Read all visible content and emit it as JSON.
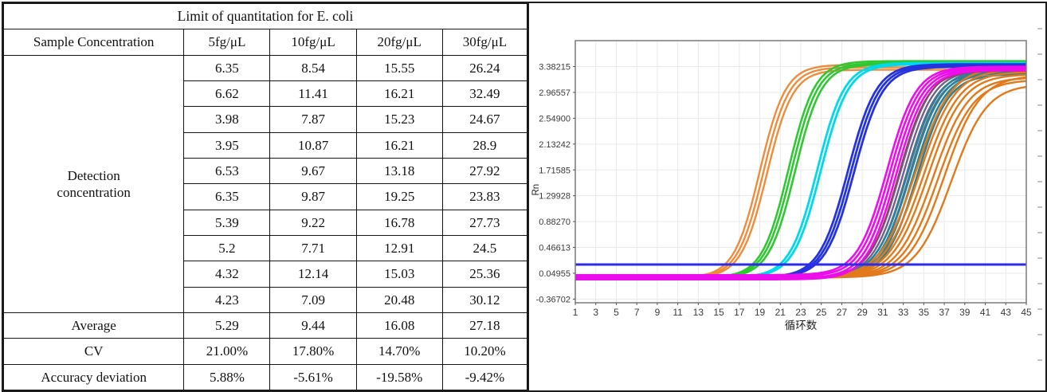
{
  "table": {
    "title": "Limit of quantitation for E. coli",
    "header": [
      "Sample Concentration",
      "5fg/μL",
      "10fg/μL",
      "20fg/μL",
      "30fg/μL"
    ],
    "group_label": [
      "Detection",
      "concentration"
    ],
    "data_rows": [
      [
        "6.35",
        "8.54",
        "15.55",
        "26.24"
      ],
      [
        "6.62",
        "11.41",
        "16.21",
        "32.49"
      ],
      [
        "3.98",
        "7.87",
        "15.23",
        "24.67"
      ],
      [
        "3.95",
        "10.87",
        "16.21",
        "28.9"
      ],
      [
        "6.53",
        "9.67",
        "13.18",
        "27.92"
      ],
      [
        "6.35",
        "9.87",
        "19.25",
        "23.83"
      ],
      [
        "5.39",
        "9.22",
        "16.78",
        "27.73"
      ],
      [
        "5.2",
        "7.71",
        "12.91",
        "24.5"
      ],
      [
        "4.32",
        "12.14",
        "15.03",
        "25.36"
      ],
      [
        "4.23",
        "7.09",
        "20.48",
        "30.12"
      ]
    ],
    "summary_rows": [
      {
        "label": "Average",
        "values": [
          "5.29",
          "9.44",
          "16.08",
          "27.18"
        ]
      },
      {
        "label": "CV",
        "values": [
          "21.00%",
          "17.80%",
          "14.70%",
          "10.20%"
        ]
      },
      {
        "label": "Accuracy deviation",
        "values": [
          "5.88%",
          "-5.61%",
          "-19.58%",
          "-9.42%"
        ]
      }
    ]
  },
  "chart_data": {
    "type": "line",
    "description": "qPCR amplification curves (sigmoid fluorescence vs cycle number) with horizontal threshold line",
    "xlabel": "循环数",
    "ylabel": "Rn",
    "xlim": [
      1,
      45
    ],
    "ylim": [
      -0.426,
      3.8
    ],
    "x_ticks": [
      1,
      3,
      5,
      7,
      9,
      11,
      13,
      15,
      17,
      19,
      21,
      23,
      25,
      27,
      29,
      31,
      33,
      35,
      37,
      39,
      41,
      43,
      45
    ],
    "y_ticks": [
      "3.38215",
      "2.96557",
      "2.54900",
      "2.13242",
      "1.71585",
      "1.29928",
      "0.88270",
      "0.46613",
      "0.04955",
      "-0.36702"
    ],
    "y_tick_values": [
      3.38215,
      2.96557,
      2.549,
      2.13242,
      1.71585,
      1.29928,
      0.8827,
      0.46613,
      0.04955,
      -0.36702
    ],
    "grid": true,
    "plot_border_color": "#7a7a7a",
    "grid_color": "#e9e9e9",
    "threshold": {
      "value": 0.19,
      "color": "#2b2be8",
      "width": 3
    },
    "baseline_default": -0.02,
    "series": [
      {
        "name": "slate-purple-group",
        "color": "#6F6190",
        "width": 2.4,
        "k": 0.68,
        "lines": [
          {
            "m": 32.7,
            "p": 3.36
          },
          {
            "m": 33.0,
            "p": 3.33
          },
          {
            "m": 33.3,
            "p": 3.3
          },
          {
            "m": 33.6,
            "p": 3.28
          }
        ]
      },
      {
        "name": "teal-group",
        "color": "#2E8296",
        "width": 2.6,
        "k": 0.66,
        "lines": [
          {
            "m": 33.4,
            "p": 3.33
          },
          {
            "m": 33.7,
            "p": 3.31
          },
          {
            "m": 34.0,
            "p": 3.29
          },
          {
            "m": 34.35,
            "p": 3.26
          }
        ]
      },
      {
        "name": "orange-late-group",
        "color": "#E2791A",
        "width": 2.4,
        "k": 0.58,
        "lines": [
          {
            "m": 34.2,
            "p": 3.38
          },
          {
            "m": 34.6,
            "p": 3.34
          },
          {
            "m": 35.0,
            "p": 3.3
          },
          {
            "m": 35.4,
            "p": 3.26
          },
          {
            "m": 35.9,
            "p": 3.21
          },
          {
            "m": 36.4,
            "p": 3.17
          },
          {
            "m": 37.0,
            "p": 3.24
          },
          {
            "m": 37.7,
            "p": 3.1
          }
        ]
      },
      {
        "name": "maroon-line",
        "color": "#9A3A55",
        "width": 1.6,
        "k": 0.7,
        "lines": [
          {
            "m": 32.55,
            "p": 3.31
          }
        ]
      },
      {
        "name": "orange-early-group",
        "color": "#EE8C3C",
        "width": 2.4,
        "k": 0.8,
        "lines": [
          {
            "m": 19.0,
            "p": 3.41
          },
          {
            "m": 19.35,
            "p": 3.37
          },
          {
            "m": 19.7,
            "p": 3.33
          }
        ]
      },
      {
        "name": "green-group",
        "color": "#2FC832",
        "width": 2.6,
        "k": 0.78,
        "lines": [
          {
            "m": 21.8,
            "p": 3.47
          },
          {
            "m": 22.1,
            "p": 3.44
          },
          {
            "m": 22.45,
            "p": 3.42
          }
        ]
      },
      {
        "name": "cyan-group",
        "color": "#00D9E9",
        "width": 2.8,
        "k": 0.75,
        "lines": [
          {
            "m": 24.6,
            "p": 3.44
          },
          {
            "m": 24.95,
            "p": 3.42
          }
        ]
      },
      {
        "name": "blue-group",
        "color": "#2433DC",
        "width": 2.8,
        "k": 0.72,
        "lines": [
          {
            "m": 27.6,
            "p": 3.42
          },
          {
            "m": 27.9,
            "p": 3.4
          },
          {
            "m": 28.2,
            "p": 3.38
          }
        ]
      },
      {
        "name": "magenta-group",
        "color": "#ED0CEC",
        "width": 2.6,
        "k": 0.7,
        "lines": [
          {
            "m": 31.4,
            "p": 3.38,
            "base": 0.02
          },
          {
            "m": 31.7,
            "p": 3.36,
            "base": 0.0
          },
          {
            "m": 32.0,
            "p": 3.34,
            "base": -0.03
          },
          {
            "m": 32.3,
            "p": 3.32,
            "base": -0.05
          }
        ]
      }
    ]
  }
}
